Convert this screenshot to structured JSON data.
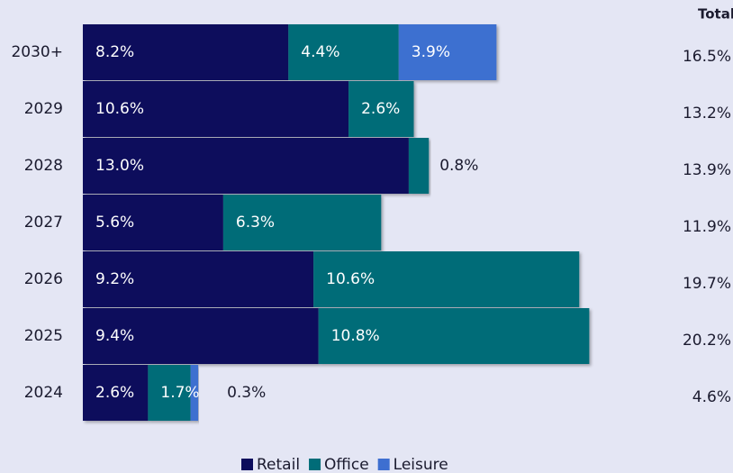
{
  "chart_data": {
    "type": "stacked-barh",
    "categories": [
      "2030+",
      "2029",
      "2028",
      "2027",
      "2026",
      "2025",
      "2024"
    ],
    "series": [
      {
        "name": "Retail",
        "color": "#0c0c5c",
        "values": [
          8.2,
          10.6,
          13.0,
          5.6,
          9.2,
          9.4,
          2.6
        ],
        "value_labels": [
          "8.2%",
          "10.6%",
          "13.0%",
          "5.6%",
          "9.2%",
          "9.4%",
          "2.6%"
        ]
      },
      {
        "name": "Office",
        "color": "#006c78",
        "values": [
          4.4,
          2.6,
          0.8,
          6.3,
          10.6,
          10.8,
          1.7
        ],
        "value_labels": [
          "4.4%",
          "2.6%",
          "0.8%",
          "6.3%",
          "10.6%",
          "10.8%",
          "1.7%"
        ]
      },
      {
        "name": "Leisure",
        "color": "#3e6fd0",
        "values": [
          3.9,
          null,
          null,
          null,
          null,
          null,
          0.3
        ],
        "value_labels": [
          "3.9%",
          null,
          null,
          null,
          null,
          null,
          "0.3%"
        ]
      }
    ],
    "totals_title": "Total",
    "totals": [
      16.5,
      13.2,
      13.9,
      11.9,
      19.7,
      20.2,
      4.6
    ],
    "totals_labels": [
      "16.5%",
      "13.2%",
      "13.9%",
      "11.9%",
      "19.7%",
      "20.2%",
      "4.6%"
    ],
    "xlim": [
      0,
      25
    ]
  }
}
